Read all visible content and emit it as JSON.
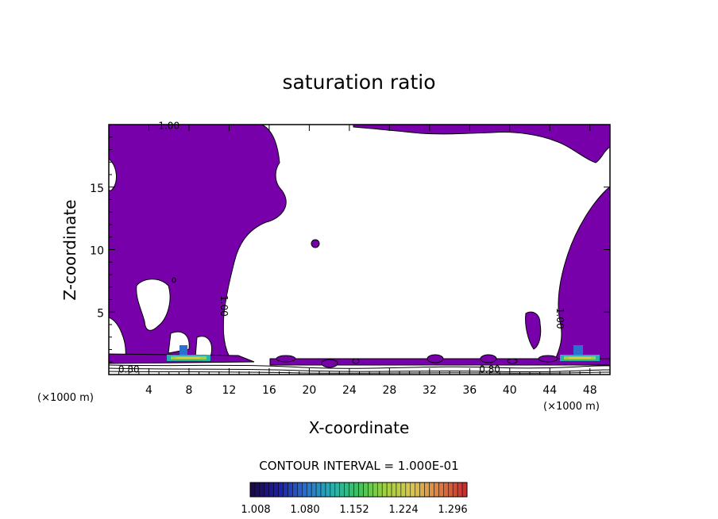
{
  "chart_data": {
    "type": "contour",
    "title": "saturation ratio",
    "xlabel": "X-coordinate",
    "ylabel": "Z-coordinate",
    "x_unit": "(×1000 m)",
    "y_unit": "(×1000 m)",
    "xlim": [
      0,
      50
    ],
    "ylim": [
      0,
      20
    ],
    "x_ticks": [
      4,
      8,
      12,
      16,
      20,
      24,
      28,
      32,
      36,
      40,
      44,
      48
    ],
    "y_ticks": [
      5,
      10,
      15
    ],
    "contour_interval_label": "CONTOUR INTERVAL = 1.000E-01",
    "contour_labels": [
      {
        "text": "1.00",
        "x": 6.0,
        "z": 19.9,
        "rotate": false
      },
      {
        "text": "1.00",
        "x": 11.5,
        "z": 5.5,
        "rotate": true
      },
      {
        "text": "1.00",
        "x": 45.0,
        "z": 4.5,
        "rotate": true
      },
      {
        "text": "0.80",
        "x": 2.0,
        "z": 0.4,
        "rotate": false
      },
      {
        "text": "0.80",
        "x": 38.0,
        "z": 0.4,
        "rotate": false
      }
    ],
    "colorbar": {
      "min": 1.008,
      "max": 1.332,
      "tick_labels": [
        "1.008",
        "1.080",
        "1.152",
        "1.224",
        "1.296"
      ],
      "colors": [
        "#1a0a4a",
        "#1b1fa8",
        "#2a70d0",
        "#28b0b0",
        "#40c060",
        "#a0d040",
        "#d8c850",
        "#e08040",
        "#c83030"
      ]
    },
    "supersaturated_fill_color": "#7700aa",
    "regions": [
      {
        "name": "left-column",
        "desc": "saturation ratio > 1.0 from surface to top, x 0-14"
      },
      {
        "name": "right-column",
        "desc": "saturation ratio > 1.0, x 43-50, rising to z 15"
      },
      {
        "name": "top-right-cloud",
        "desc": "saturation ratio > 1.0 near top, x 23-50"
      }
    ]
  }
}
